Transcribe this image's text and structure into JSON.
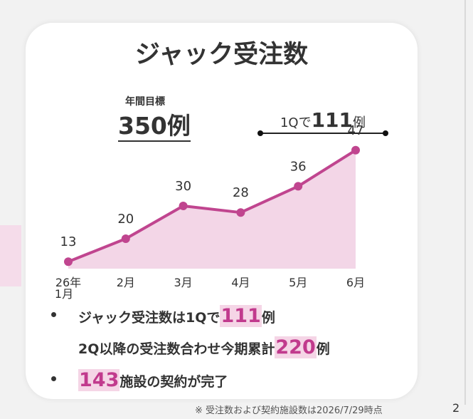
{
  "slide": {
    "title": "ジャック受注数",
    "target_label": "年間目標",
    "target_value": "350例",
    "q1_prefix": "1Qで",
    "q1_number": "111",
    "q1_suffix": "例",
    "bullets": [
      {
        "parts": [
          "ジャック受注数は1Qで",
          "111",
          "例"
        ]
      },
      {
        "parts": [
          "2Q以降の受注数合わせ今期累計",
          "220",
          "例"
        ]
      },
      {
        "parts": [
          "",
          "143",
          "施設の契約が完了"
        ]
      }
    ],
    "footnote": "※ 受注数および契約施設数は2026/7/29時点",
    "page_number": "2"
  },
  "colors": {
    "accent": "#c13a8d",
    "line": "#c0458f",
    "area_fill": "#f3d6e7",
    "highlight_bg": "#f5d5e6",
    "card_bg": "#ffffff",
    "page_bg": "#f2f2f2"
  },
  "chart_data": {
    "type": "area",
    "title": "",
    "categories": [
      "26年\n1月",
      "2月",
      "3月",
      "4月",
      "5月",
      "6月"
    ],
    "series": [
      {
        "values": [
          13,
          20,
          30,
          28,
          36,
          47
        ]
      }
    ],
    "xlabel": "",
    "ylabel": "",
    "ylim": [
      0,
      50
    ],
    "grid": false,
    "legend": "none",
    "data_labels": true
  }
}
